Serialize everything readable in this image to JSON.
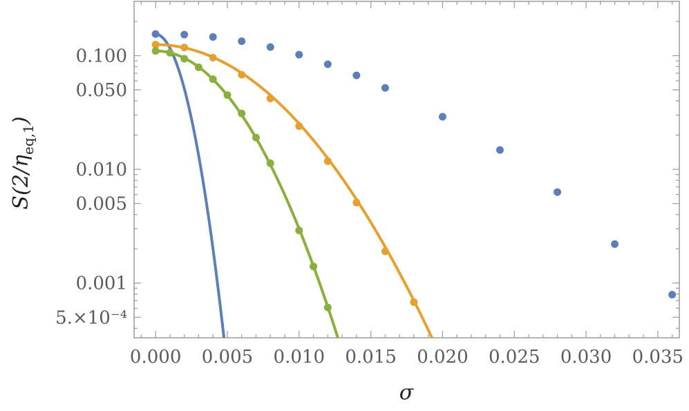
{
  "chart_data": {
    "type": "scatter",
    "xlabel": "σ",
    "ylabel": "S(2/η_eq,1)",
    "xlim": [
      -0.0015,
      0.0365
    ],
    "ylim": [
      0.00033,
      0.3
    ],
    "yscale": "log",
    "grid": false,
    "x_ticks": [
      0.0,
      0.005,
      0.01,
      0.015,
      0.02,
      0.025,
      0.03,
      0.035
    ],
    "x_tick_labels": [
      "0.000",
      "0.005",
      "0.010",
      "0.015",
      "0.020",
      "0.025",
      "0.030",
      "0.035"
    ],
    "y_ticks": [
      0.1,
      0.05,
      0.01,
      0.005,
      0.001,
      0.0005
    ],
    "y_tick_labels": [
      "0.100",
      "0.050",
      "0.010",
      "0.005",
      "0.001",
      "5.×10⁻⁴"
    ],
    "series": [
      {
        "color": "#5b7fb6",
        "points": [
          [
            0.0,
            0.155
          ],
          [
            0.002,
            0.153
          ],
          [
            0.004,
            0.146
          ],
          [
            0.006,
            0.134
          ],
          [
            0.008,
            0.119
          ],
          [
            0.01,
            0.102
          ],
          [
            0.012,
            0.084
          ],
          [
            0.014,
            0.067
          ],
          [
            0.016,
            0.052
          ],
          [
            0.02,
            0.029
          ],
          [
            0.024,
            0.0148
          ],
          [
            0.028,
            0.0063
          ],
          [
            0.032,
            0.0022
          ],
          [
            0.036,
            0.00079
          ]
        ],
        "curve": {
          "a": 0.155,
          "b": 19.0,
          "c": 267000
        }
      },
      {
        "color": "#e6a030",
        "points": [
          [
            0.0,
            0.125
          ],
          [
            0.002,
            0.118
          ],
          [
            0.004,
            0.096
          ],
          [
            0.006,
            0.068
          ],
          [
            0.008,
            0.042
          ],
          [
            0.01,
            0.024
          ],
          [
            0.012,
            0.0118
          ],
          [
            0.014,
            0.0051
          ],
          [
            0.016,
            0.0019
          ],
          [
            0.018,
            0.00068
          ]
        ],
        "curve": {
          "a": 0.125,
          "b": 0,
          "c": 16000
        }
      },
      {
        "color": "#8aaf3c",
        "points": [
          [
            0.0,
            0.11
          ],
          [
            0.001,
            0.106
          ],
          [
            0.002,
            0.094
          ],
          [
            0.003,
            0.079
          ],
          [
            0.004,
            0.062
          ],
          [
            0.005,
            0.045
          ],
          [
            0.006,
            0.031
          ],
          [
            0.007,
            0.019
          ],
          [
            0.008,
            0.0113
          ],
          [
            0.01,
            0.0029
          ],
          [
            0.011,
            0.0014
          ],
          [
            0.012,
            0.00061
          ]
        ],
        "curve": {
          "a": 0.11,
          "b": 0,
          "c": 36000
        }
      }
    ]
  }
}
